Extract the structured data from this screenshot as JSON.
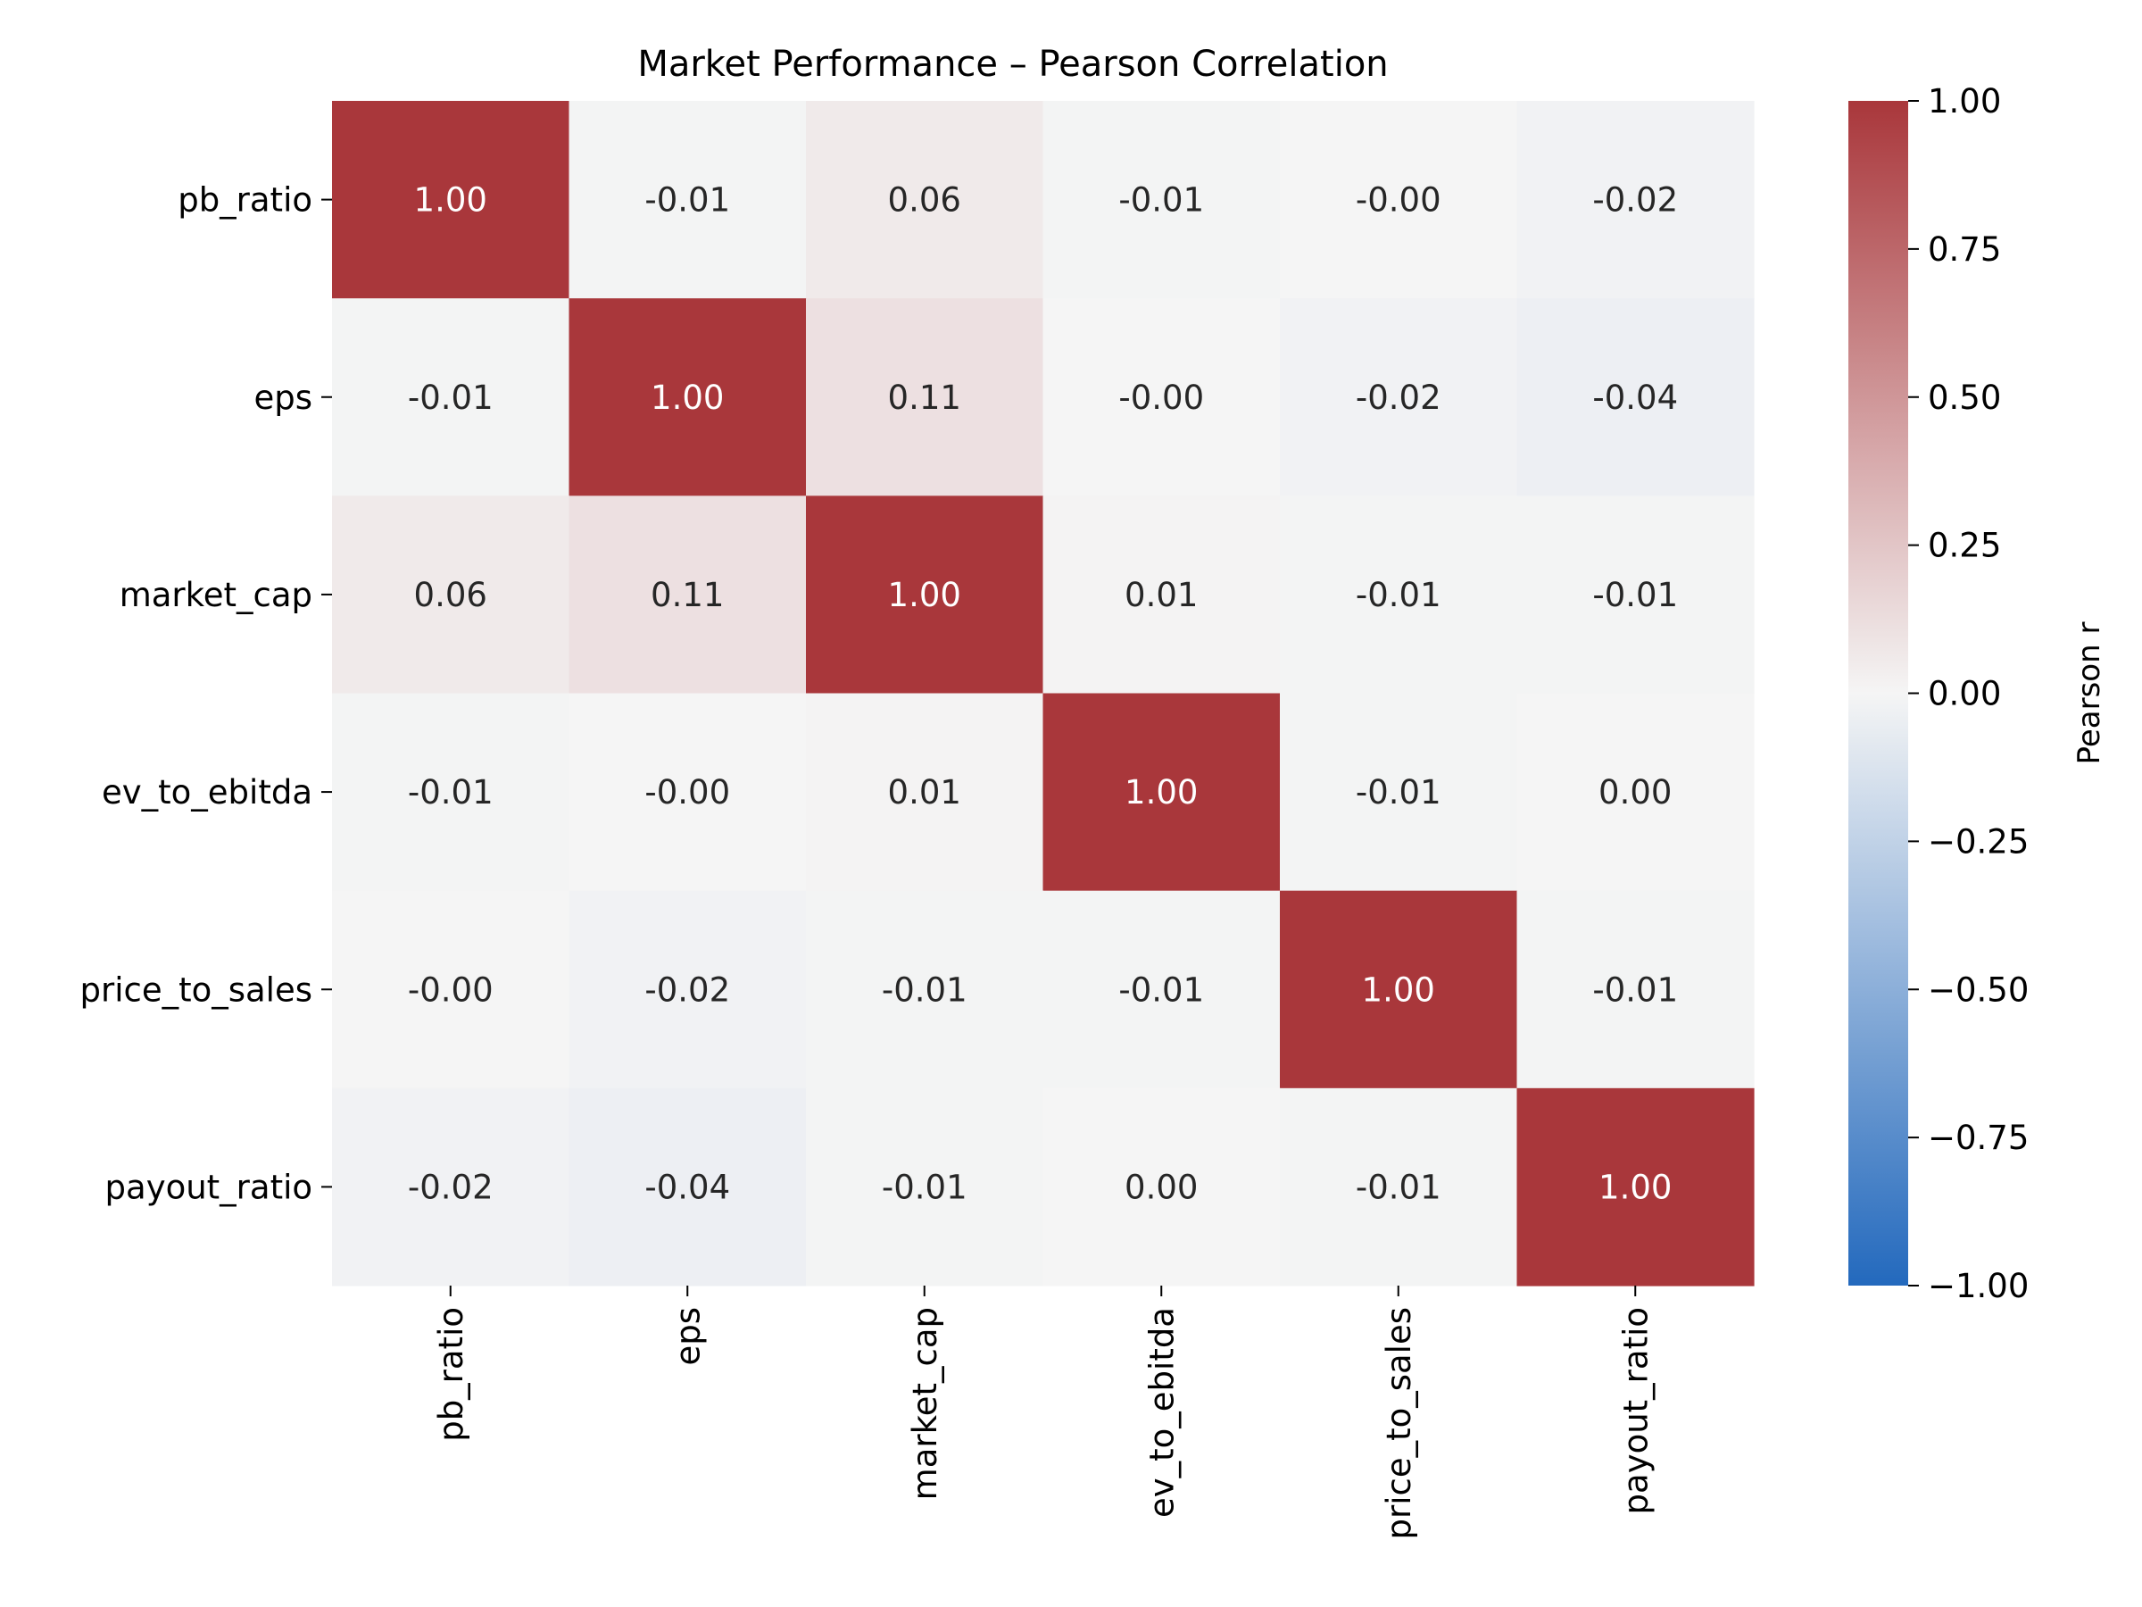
{
  "chart_data": {
    "type": "heatmap",
    "title": "Market Performance – Pearson Correlation",
    "rows": [
      "pb_ratio",
      "eps",
      "market_cap",
      "ev_to_ebitda",
      "price_to_sales",
      "payout_ratio"
    ],
    "cols": [
      "pb_ratio",
      "eps",
      "market_cap",
      "ev_to_ebitda",
      "price_to_sales",
      "payout_ratio"
    ],
    "values": [
      [
        1.0,
        -0.01,
        0.06,
        -0.01,
        -0.0,
        -0.02
      ],
      [
        -0.01,
        1.0,
        0.11,
        -0.0,
        -0.02,
        -0.04
      ],
      [
        0.06,
        0.11,
        1.0,
        0.01,
        -0.01,
        -0.01
      ],
      [
        -0.01,
        -0.0,
        0.01,
        1.0,
        -0.01,
        0.0
      ],
      [
        -0.0,
        -0.02,
        -0.01,
        -0.01,
        1.0,
        -0.01
      ],
      [
        -0.02,
        -0.04,
        -0.01,
        0.0,
        -0.01,
        1.0
      ]
    ],
    "cell_labels": [
      [
        "1.00",
        "-0.01",
        "0.06",
        "-0.01",
        "-0.00",
        "-0.02"
      ],
      [
        "-0.01",
        "1.00",
        "0.11",
        "-0.00",
        "-0.02",
        "-0.04"
      ],
      [
        "0.06",
        "0.11",
        "1.00",
        "0.01",
        "-0.01",
        "-0.01"
      ],
      [
        "-0.01",
        "-0.00",
        "0.01",
        "1.00",
        "-0.01",
        "0.00"
      ],
      [
        "-0.00",
        "-0.02",
        "-0.01",
        "-0.01",
        "1.00",
        "-0.01"
      ],
      [
        "-0.02",
        "-0.04",
        "-0.01",
        "0.00",
        "-0.01",
        "1.00"
      ]
    ],
    "colorbar": {
      "label": "Pearson r",
      "range": [
        -1.0,
        1.0
      ],
      "ticks": [
        1.0,
        0.75,
        0.5,
        0.25,
        0.0,
        -0.25,
        -0.5,
        -0.75,
        -1.0
      ],
      "tick_labels": [
        "1.00",
        "0.75",
        "0.50",
        "0.25",
        "0.00",
        "−0.25",
        "−0.50",
        "−0.75",
        "−1.00"
      ],
      "colormap": "vlag",
      "colors": {
        "low": "#2369bd",
        "mid": "#f5f5f5",
        "high": "#a9373b"
      }
    },
    "grid": false
  }
}
